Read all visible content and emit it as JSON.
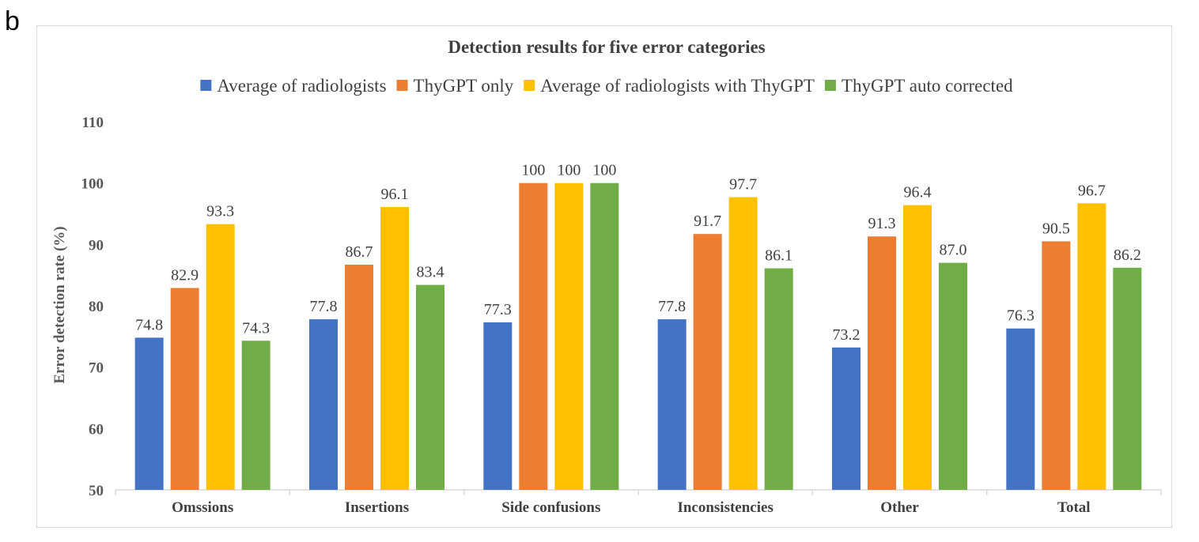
{
  "panel_label": "b",
  "colors": {
    "average_of_radiologists": "#4472c4",
    "thygpt_only": "#ed7d31",
    "average_with_thygpt": "#ffc000",
    "thygpt_auto_corrected": "#70ad47",
    "grid": "#d9d9d9",
    "text": "#404040"
  },
  "chart_data": {
    "type": "bar",
    "title": "Detection results for five error categories",
    "xlabel": "",
    "ylabel": "Error detection rate (%)",
    "ylim": [
      50,
      110
    ],
    "yticks": [
      50,
      60,
      70,
      80,
      90,
      100,
      110
    ],
    "grid": false,
    "legend_position": "top",
    "categories": [
      "Omssions",
      "Insertions",
      "Side confusions",
      "Inconsistencies",
      "Other",
      "Total"
    ],
    "series": [
      {
        "name": "Average of radiologists",
        "color": "#4472c4",
        "values": [
          74.8,
          77.8,
          77.3,
          77.8,
          73.2,
          76.3
        ],
        "labels": [
          "74.8",
          "77.8",
          "77.3",
          "77.8",
          "73.2",
          "76.3"
        ]
      },
      {
        "name": "ThyGPT only",
        "color": "#ed7d31",
        "values": [
          82.9,
          86.7,
          100,
          91.7,
          91.3,
          90.5
        ],
        "labels": [
          "82.9",
          "86.7",
          "100",
          "91.7",
          "91.3",
          "90.5"
        ]
      },
      {
        "name": "Average of radiologists with ThyGPT",
        "color": "#ffc000",
        "values": [
          93.3,
          96.1,
          100,
          97.7,
          96.4,
          96.7
        ],
        "labels": [
          "93.3",
          "96.1",
          "100",
          "97.7",
          "96.4",
          "96.7"
        ]
      },
      {
        "name": "ThyGPT auto corrected",
        "color": "#70ad47",
        "values": [
          74.3,
          83.4,
          100,
          86.1,
          87.0,
          86.2
        ],
        "labels": [
          "74.3",
          "83.4",
          "100",
          "86.1",
          "87.0",
          "86.2"
        ]
      }
    ]
  }
}
